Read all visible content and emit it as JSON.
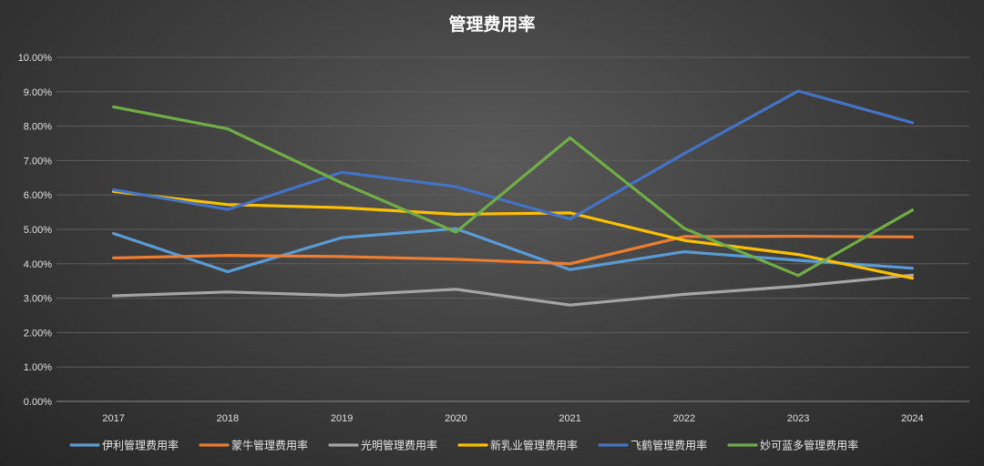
{
  "chart_data": {
    "type": "line",
    "title": "管理费用率",
    "xlabel": "",
    "ylabel": "",
    "categories": [
      "2017",
      "2018",
      "2019",
      "2020",
      "2021",
      "2022",
      "2023",
      "2024"
    ],
    "ylim": [
      0,
      10
    ],
    "yticks": [
      "0.00%",
      "1.00%",
      "2.00%",
      "3.00%",
      "4.00%",
      "5.00%",
      "6.00%",
      "7.00%",
      "8.00%",
      "9.00%",
      "10.00%"
    ],
    "grid": true,
    "legend": "bottom",
    "series": [
      {
        "name": "伊利管理费用率",
        "color": "#5b9bd5",
        "values": [
          4.88,
          3.77,
          4.76,
          5.02,
          3.83,
          4.35,
          4.1,
          3.87
        ]
      },
      {
        "name": "蒙牛管理费用率",
        "color": "#ed7d31",
        "values": [
          4.17,
          4.24,
          4.21,
          4.13,
          4.0,
          4.79,
          4.8,
          4.78
        ]
      },
      {
        "name": "光明管理费用率",
        "color": "#a5a5a5",
        "values": [
          3.07,
          3.18,
          3.08,
          3.26,
          2.8,
          3.11,
          3.35,
          3.67
        ]
      },
      {
        "name": "新乳业管理费用率",
        "color": "#ffc000",
        "values": [
          6.1,
          5.72,
          5.63,
          5.44,
          5.48,
          4.68,
          4.27,
          3.58
        ]
      },
      {
        "name": "飞鹤管理费用率",
        "color": "#4472c4",
        "values": [
          6.15,
          5.58,
          6.66,
          6.24,
          5.3,
          7.2,
          9.02,
          8.1
        ]
      },
      {
        "name": "妙可蓝多管理费用率",
        "color": "#70ad47",
        "values": [
          8.56,
          7.92,
          6.35,
          4.92,
          7.66,
          5.03,
          3.66,
          5.56
        ]
      }
    ]
  }
}
